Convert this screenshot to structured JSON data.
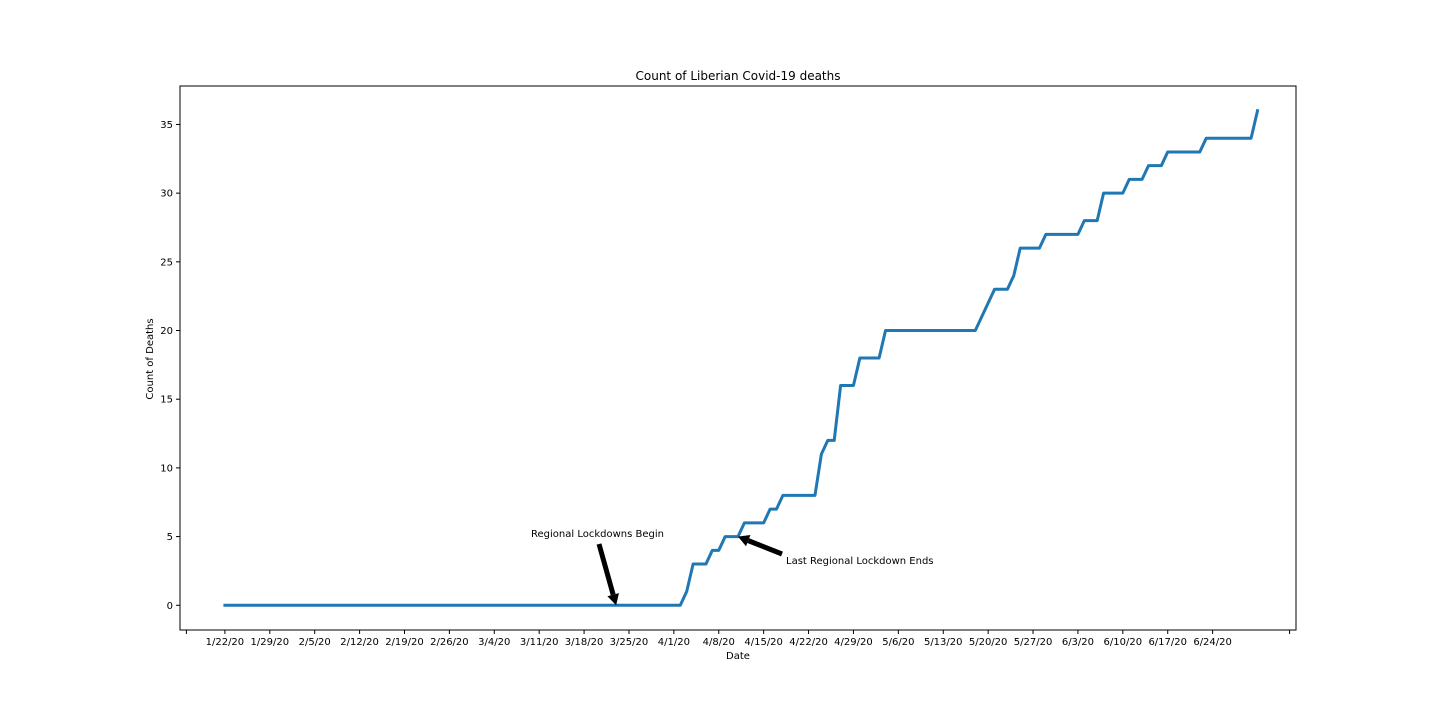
{
  "chart_data": {
    "type": "line",
    "title": "Count of Liberian Covid-19 deaths",
    "xlabel": "Date",
    "ylabel": "Count of Deaths",
    "x_start": "1/22/20",
    "x_end": "6/30/20",
    "xlim": [
      "1/15/20",
      "7/7/20"
    ],
    "ylim": [
      -1.8,
      37.8
    ],
    "x_tick_labels": [
      "1/22/20",
      "1/29/20",
      "2/5/20",
      "2/12/20",
      "2/19/20",
      "2/26/20",
      "3/4/20",
      "3/11/20",
      "3/18/20",
      "3/25/20",
      "4/1/20",
      "4/8/20",
      "4/15/20",
      "4/22/20",
      "4/29/20",
      "5/6/20",
      "5/13/20",
      "5/20/20",
      "5/27/20",
      "6/3/20",
      "6/10/20",
      "6/17/20",
      "6/24/20"
    ],
    "y_ticks": [
      0,
      5,
      10,
      15,
      20,
      25,
      30,
      35
    ],
    "grid": false,
    "legend": "none",
    "series": [
      {
        "color": "#1f77b4",
        "values": [
          0,
          0,
          0,
          0,
          0,
          0,
          0,
          0,
          0,
          0,
          0,
          0,
          0,
          0,
          0,
          0,
          0,
          0,
          0,
          0,
          0,
          0,
          0,
          0,
          0,
          0,
          0,
          0,
          0,
          0,
          0,
          0,
          0,
          0,
          0,
          0,
          0,
          0,
          0,
          0,
          0,
          0,
          0,
          0,
          0,
          0,
          0,
          0,
          0,
          0,
          0,
          0,
          0,
          0,
          0,
          0,
          0,
          0,
          0,
          0,
          0,
          0,
          0,
          0,
          0,
          0,
          0,
          0,
          0,
          0,
          0,
          0,
          1,
          3,
          3,
          3,
          4,
          4,
          5,
          5,
          5,
          6,
          6,
          6,
          6,
          7,
          7,
          8,
          8,
          8,
          8,
          8,
          8,
          11,
          12,
          12,
          16,
          16,
          16,
          18,
          18,
          18,
          18,
          20,
          20,
          20,
          20,
          20,
          20,
          20,
          20,
          20,
          20,
          20,
          20,
          20,
          20,
          20,
          21,
          22,
          23,
          23,
          23,
          24,
          26,
          26,
          26,
          26,
          27,
          27,
          27,
          27,
          27,
          27,
          28,
          28,
          28,
          30,
          30,
          30,
          30,
          31,
          31,
          31,
          32,
          32,
          32,
          33,
          33,
          33,
          33,
          33,
          33,
          34,
          34,
          34,
          34,
          34,
          34,
          34,
          34,
          36
        ]
      }
    ],
    "annotations": [
      {
        "text": "Regional Lockdowns Begin",
        "point_date": "3/23/20",
        "point_value": 0
      },
      {
        "text": "Last Regional Lockdown Ends",
        "point_date": "4/11/20",
        "point_value": 5
      }
    ]
  }
}
